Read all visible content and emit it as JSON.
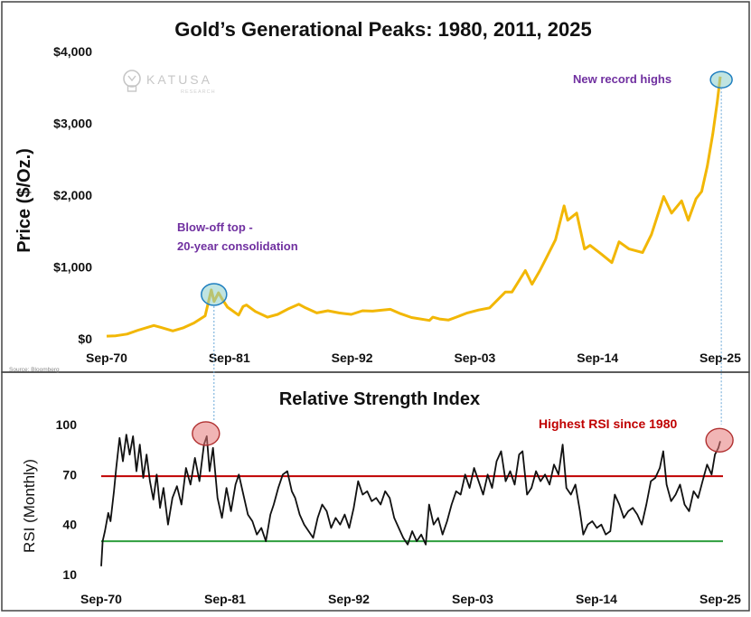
{
  "chart_data": [
    {
      "type": "line",
      "title": "Gold’s Generational Peaks: 1980, 2011, 2025",
      "xlabel": "",
      "ylabel": "Price ($/Oz.)",
      "ylim": [
        0,
        4000
      ],
      "xlim": [
        1970.67,
        2025.67
      ],
      "x_ticks": [
        {
          "label": "Sep-70",
          "value": 1970.67
        },
        {
          "label": "Sep-81",
          "value": 1981.67
        },
        {
          "label": "Sep-92",
          "value": 1992.67
        },
        {
          "label": "Sep-03",
          "value": 2003.67
        },
        {
          "label": "Sep-14",
          "value": 2014.67
        },
        {
          "label": "Sep-25",
          "value": 2025.67
        }
      ],
      "y_ticks": [
        {
          "label": "$0",
          "value": 0
        },
        {
          "label": "$1,000",
          "value": 1000
        },
        {
          "label": "$2,000",
          "value": 2000
        },
        {
          "label": "$3,000",
          "value": 3000
        },
        {
          "label": "$4,000",
          "value": 4000
        }
      ],
      "series": [
        {
          "name": "Gold price",
          "color": "#F2B705",
          "points": [
            [
              1970.67,
              36
            ],
            [
              1971.5,
              42
            ],
            [
              1972.5,
              65
            ],
            [
              1973.5,
              120
            ],
            [
              1974.9,
              185
            ],
            [
              1975.5,
              160
            ],
            [
              1976.6,
              110
            ],
            [
              1977.5,
              150
            ],
            [
              1978.5,
              220
            ],
            [
              1979.5,
              320
            ],
            [
              1980.05,
              680
            ],
            [
              1980.3,
              520
            ],
            [
              1980.7,
              640
            ],
            [
              1981.0,
              560
            ],
            [
              1981.5,
              440
            ],
            [
              1982.5,
              330
            ],
            [
              1982.9,
              450
            ],
            [
              1983.2,
              470
            ],
            [
              1984.0,
              380
            ],
            [
              1985.1,
              300
            ],
            [
              1986.0,
              340
            ],
            [
              1987.0,
              420
            ],
            [
              1987.9,
              480
            ],
            [
              1988.5,
              430
            ],
            [
              1989.5,
              360
            ],
            [
              1990.5,
              390
            ],
            [
              1991.5,
              360
            ],
            [
              1992.6,
              340
            ],
            [
              1993.6,
              390
            ],
            [
              1994.5,
              385
            ],
            [
              1996.1,
              410
            ],
            [
              1997.0,
              350
            ],
            [
              1998.0,
              295
            ],
            [
              1999.6,
              255
            ],
            [
              1999.9,
              300
            ],
            [
              2000.5,
              275
            ],
            [
              2001.3,
              260
            ],
            [
              2002.0,
              300
            ],
            [
              2003.0,
              360
            ],
            [
              2004.0,
              400
            ],
            [
              2005.0,
              430
            ],
            [
              2006.4,
              650
            ],
            [
              2007.0,
              650
            ],
            [
              2008.2,
              950
            ],
            [
              2008.8,
              760
            ],
            [
              2009.5,
              950
            ],
            [
              2010.0,
              1100
            ],
            [
              2010.9,
              1380
            ],
            [
              2011.67,
              1850
            ],
            [
              2012.0,
              1650
            ],
            [
              2012.8,
              1750
            ],
            [
              2013.5,
              1250
            ],
            [
              2014.0,
              1300
            ],
            [
              2015.0,
              1180
            ],
            [
              2015.95,
              1060
            ],
            [
              2016.6,
              1350
            ],
            [
              2017.5,
              1250
            ],
            [
              2018.7,
              1200
            ],
            [
              2019.5,
              1450
            ],
            [
              2020.6,
              1980
            ],
            [
              2021.3,
              1750
            ],
            [
              2022.2,
              1920
            ],
            [
              2022.8,
              1650
            ],
            [
              2023.5,
              1950
            ],
            [
              2024.0,
              2050
            ],
            [
              2024.5,
              2400
            ],
            [
              2025.0,
              2850
            ],
            [
              2025.4,
              3300
            ],
            [
              2025.67,
              3650
            ]
          ]
        }
      ],
      "annotations": [
        {
          "text_lines": [
            "Blow-off top -",
            "20-year consolidation"
          ],
          "target": [
            1980.05,
            680
          ],
          "color": "#7030A0"
        },
        {
          "text_lines": [
            "New record highs"
          ],
          "target": [
            2025.6,
            3620
          ],
          "color": "#7030A0"
        }
      ],
      "watermark": {
        "name": "KATUSA",
        "sub": "RESEARCH"
      },
      "source": "Source: Bloomberg"
    },
    {
      "type": "line",
      "title": "Relative Strength Index",
      "xlabel": "",
      "ylabel": "RSI (Monthly)",
      "ylim": [
        10,
        100
      ],
      "xlim": [
        1970.67,
        2025.67
      ],
      "x_ticks": [
        {
          "label": "Sep-70",
          "value": 1970.67
        },
        {
          "label": "Sep-81",
          "value": 1981.67
        },
        {
          "label": "Sep-92",
          "value": 1992.67
        },
        {
          "label": "Sep-03",
          "value": 2003.67
        },
        {
          "label": "Sep-14",
          "value": 2014.67
        },
        {
          "label": "Sep-25",
          "value": 2025.67
        }
      ],
      "y_ticks": [
        {
          "label": "10",
          "value": 10
        },
        {
          "label": "40",
          "value": 40
        },
        {
          "label": "70",
          "value": 70
        },
        {
          "label": "100",
          "value": 100
        }
      ],
      "reference_lines": [
        {
          "name": "overbought",
          "value": 69,
          "color": "#C00000"
        },
        {
          "name": "oversold",
          "value": 30,
          "color": "#2E9E3E"
        }
      ],
      "series": [
        {
          "name": "RSI",
          "color": "#111111",
          "points": [
            [
              1970.67,
              15
            ],
            [
              1970.8,
              30
            ],
            [
              1971.0,
              36
            ],
            [
              1971.3,
              47
            ],
            [
              1971.5,
              42
            ],
            [
              1971.8,
              60
            ],
            [
              1972.0,
              74
            ],
            [
              1972.3,
              92
            ],
            [
              1972.6,
              78
            ],
            [
              1972.9,
              94
            ],
            [
              1973.2,
              82
            ],
            [
              1973.5,
              93
            ],
            [
              1973.8,
              72
            ],
            [
              1974.1,
              88
            ],
            [
              1974.4,
              68
            ],
            [
              1974.7,
              82
            ],
            [
              1975.0,
              66
            ],
            [
              1975.3,
              55
            ],
            [
              1975.6,
              70
            ],
            [
              1975.9,
              50
            ],
            [
              1976.2,
              62
            ],
            [
              1976.6,
              40
            ],
            [
              1977.0,
              56
            ],
            [
              1977.4,
              63
            ],
            [
              1977.8,
              52
            ],
            [
              1978.2,
              74
            ],
            [
              1978.6,
              64
            ],
            [
              1979.0,
              80
            ],
            [
              1979.4,
              66
            ],
            [
              1979.8,
              88
            ],
            [
              1980.05,
              93
            ],
            [
              1980.3,
              72
            ],
            [
              1980.6,
              86
            ],
            [
              1981.0,
              56
            ],
            [
              1981.4,
              44
            ],
            [
              1981.8,
              62
            ],
            [
              1982.2,
              48
            ],
            [
              1982.6,
              64
            ],
            [
              1982.9,
              70
            ],
            [
              1983.3,
              58
            ],
            [
              1983.7,
              46
            ],
            [
              1984.1,
              42
            ],
            [
              1984.5,
              34
            ],
            [
              1984.9,
              38
            ],
            [
              1985.3,
              30
            ],
            [
              1985.7,
              46
            ],
            [
              1986.0,
              52
            ],
            [
              1986.4,
              62
            ],
            [
              1986.8,
              70
            ],
            [
              1987.2,
              72
            ],
            [
              1987.6,
              60
            ],
            [
              1987.9,
              56
            ],
            [
              1988.3,
              46
            ],
            [
              1988.7,
              40
            ],
            [
              1989.1,
              36
            ],
            [
              1989.5,
              32
            ],
            [
              1989.9,
              44
            ],
            [
              1990.3,
              52
            ],
            [
              1990.7,
              48
            ],
            [
              1991.1,
              38
            ],
            [
              1991.5,
              44
            ],
            [
              1991.9,
              40
            ],
            [
              1992.3,
              46
            ],
            [
              1992.7,
              38
            ],
            [
              1993.1,
              50
            ],
            [
              1993.5,
              66
            ],
            [
              1993.9,
              58
            ],
            [
              1994.3,
              60
            ],
            [
              1994.7,
              54
            ],
            [
              1995.1,
              56
            ],
            [
              1995.5,
              52
            ],
            [
              1995.9,
              60
            ],
            [
              1996.3,
              56
            ],
            [
              1996.7,
              44
            ],
            [
              1997.1,
              38
            ],
            [
              1997.5,
              32
            ],
            [
              1997.9,
              28
            ],
            [
              1998.3,
              36
            ],
            [
              1998.7,
              30
            ],
            [
              1999.1,
              34
            ],
            [
              1999.5,
              28
            ],
            [
              1999.8,
              52
            ],
            [
              2000.2,
              40
            ],
            [
              2000.6,
              44
            ],
            [
              2001.0,
              34
            ],
            [
              2001.4,
              42
            ],
            [
              2001.8,
              52
            ],
            [
              2002.2,
              60
            ],
            [
              2002.6,
              58
            ],
            [
              2003.0,
              70
            ],
            [
              2003.4,
              62
            ],
            [
              2003.8,
              74
            ],
            [
              2004.2,
              66
            ],
            [
              2004.6,
              58
            ],
            [
              2005.0,
              70
            ],
            [
              2005.4,
              62
            ],
            [
              2005.8,
              78
            ],
            [
              2006.2,
              84
            ],
            [
              2006.6,
              66
            ],
            [
              2007.0,
              72
            ],
            [
              2007.4,
              64
            ],
            [
              2007.8,
              82
            ],
            [
              2008.1,
              84
            ],
            [
              2008.5,
              58
            ],
            [
              2008.9,
              62
            ],
            [
              2009.3,
              72
            ],
            [
              2009.7,
              66
            ],
            [
              2010.1,
              70
            ],
            [
              2010.5,
              64
            ],
            [
              2010.9,
              76
            ],
            [
              2011.3,
              70
            ],
            [
              2011.67,
              88
            ],
            [
              2012.0,
              62
            ],
            [
              2012.4,
              58
            ],
            [
              2012.8,
              64
            ],
            [
              2013.2,
              48
            ],
            [
              2013.5,
              34
            ],
            [
              2013.9,
              40
            ],
            [
              2014.3,
              42
            ],
            [
              2014.7,
              38
            ],
            [
              2015.1,
              40
            ],
            [
              2015.5,
              34
            ],
            [
              2015.9,
              36
            ],
            [
              2016.3,
              58
            ],
            [
              2016.7,
              52
            ],
            [
              2017.1,
              44
            ],
            [
              2017.5,
              48
            ],
            [
              2017.9,
              50
            ],
            [
              2018.3,
              46
            ],
            [
              2018.7,
              40
            ],
            [
              2019.1,
              52
            ],
            [
              2019.5,
              66
            ],
            [
              2019.9,
              68
            ],
            [
              2020.3,
              74
            ],
            [
              2020.6,
              84
            ],
            [
              2020.9,
              64
            ],
            [
              2021.3,
              54
            ],
            [
              2021.7,
              58
            ],
            [
              2022.1,
              64
            ],
            [
              2022.5,
              52
            ],
            [
              2022.9,
              48
            ],
            [
              2023.3,
              60
            ],
            [
              2023.7,
              56
            ],
            [
              2024.1,
              66
            ],
            [
              2024.5,
              76
            ],
            [
              2024.9,
              70
            ],
            [
              2025.2,
              82
            ],
            [
              2025.5,
              86
            ],
            [
              2025.67,
              90
            ]
          ]
        }
      ],
      "annotations": [
        {
          "text_lines": [
            "Highest RSI since 1980"
          ],
          "target": [
            2025.5,
            89
          ],
          "color": "#C00000"
        }
      ],
      "highlights": [
        {
          "target": [
            1980.05,
            93
          ]
        },
        {
          "target": [
            2025.6,
            89
          ]
        }
      ]
    }
  ]
}
